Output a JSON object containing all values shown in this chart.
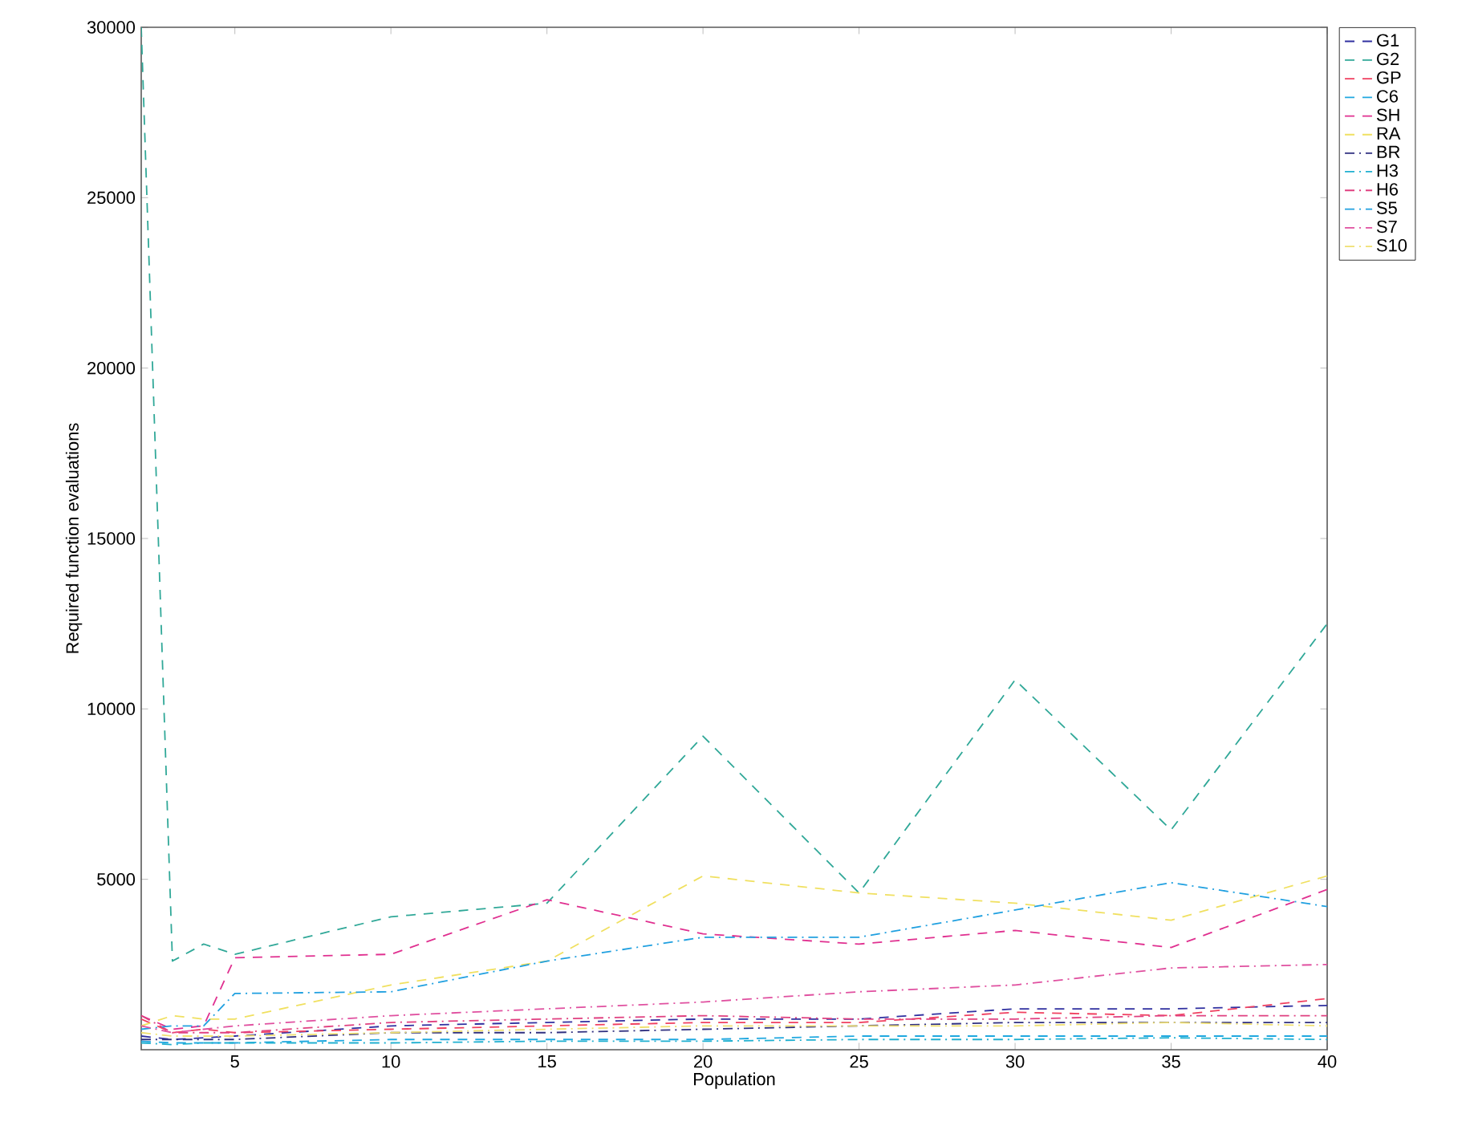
{
  "chart_data": {
    "type": "line",
    "xlabel": "Population",
    "ylabel": "Required function evaluations",
    "x": [
      2,
      3,
      4,
      5,
      10,
      15,
      20,
      25,
      30,
      35,
      40
    ],
    "xlim": [
      2,
      40
    ],
    "ylim": [
      0,
      30000
    ],
    "xticks": [
      5,
      10,
      15,
      20,
      25,
      30,
      35,
      40
    ],
    "yticks": [
      5000,
      10000,
      15000,
      20000,
      25000,
      30000
    ],
    "legend": "top right",
    "grid": false,
    "marker": "none",
    "series": [
      {
        "name": "G1",
        "color": "#3030a0",
        "line_style": "dashed",
        "values": [
          400,
          300,
          350,
          400,
          700,
          800,
          900,
          900,
          1200,
          1200,
          1300
        ]
      },
      {
        "name": "G2",
        "color": "#30a898",
        "line_style": "dashed",
        "values": [
          30000,
          2600,
          3100,
          2800,
          3900,
          4300,
          9200,
          4600,
          10850,
          6450,
          12500
        ]
      },
      {
        "name": "GP",
        "color": "#f04060",
        "line_style": "dashed",
        "values": [
          900,
          500,
          600,
          500,
          600,
          700,
          800,
          800,
          1100,
          1000,
          1500
        ]
      },
      {
        "name": "C6",
        "color": "#20a8e0",
        "line_style": "dashed",
        "values": [
          250,
          200,
          200,
          200,
          300,
          300,
          300,
          400,
          400,
          400,
          400
        ]
      },
      {
        "name": "SH",
        "color": "#e03090",
        "line_style": "dashed",
        "values": [
          1000,
          600,
          700,
          2700,
          2800,
          4400,
          3400,
          3100,
          3500,
          3000,
          4700
        ]
      },
      {
        "name": "RA",
        "color": "#f0e060",
        "line_style": "dashed",
        "values": [
          700,
          1000,
          900,
          900,
          1900,
          2600,
          5100,
          4600,
          4300,
          3800,
          5100
        ]
      },
      {
        "name": "BR",
        "color": "#303080",
        "line_style": "dashdot",
        "values": [
          300,
          300,
          300,
          300,
          500,
          500,
          600,
          700,
          800,
          800,
          800
        ]
      },
      {
        "name": "H3",
        "color": "#20b0d0",
        "line_style": "dashdot",
        "values": [
          200,
          150,
          200,
          200,
          200,
          250,
          250,
          300,
          300,
          350,
          300
        ]
      },
      {
        "name": "H6",
        "color": "#e04080",
        "line_style": "dashdot",
        "values": [
          1000,
          500,
          500,
          500,
          800,
          900,
          1000,
          900,
          900,
          1000,
          1000
        ]
      },
      {
        "name": "S5",
        "color": "#20a0e0",
        "line_style": "dashdot",
        "values": [
          600,
          700,
          700,
          1650,
          1700,
          2600,
          3300,
          3300,
          4100,
          4900,
          4200
        ]
      },
      {
        "name": "S7",
        "color": "#e050a0",
        "line_style": "dashdot",
        "values": [
          700,
          500,
          600,
          700,
          1000,
          1200,
          1400,
          1700,
          1900,
          2400,
          2500
        ]
      },
      {
        "name": "S10",
        "color": "#f0e070",
        "line_style": "dashdot",
        "values": [
          500,
          400,
          400,
          400,
          500,
          600,
          700,
          700,
          700,
          800,
          700
        ]
      }
    ]
  }
}
